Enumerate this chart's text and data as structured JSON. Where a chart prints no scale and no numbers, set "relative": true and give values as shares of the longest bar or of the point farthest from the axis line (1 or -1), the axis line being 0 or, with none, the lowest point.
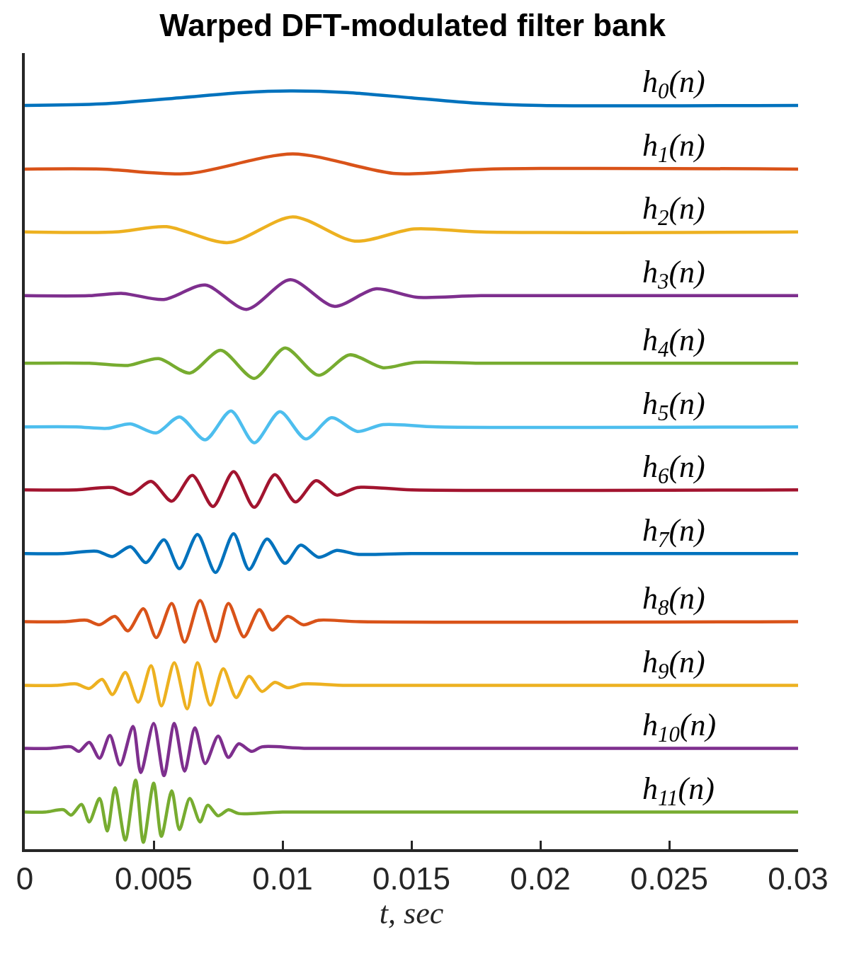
{
  "chart_data": {
    "type": "line",
    "title": "Warped DFT-modulated filter bank",
    "xlabel": "t, sec",
    "relative": true,
    "xlim": [
      0,
      0.03
    ],
    "xticks": [
      0,
      0.005,
      0.01,
      0.015,
      0.02,
      0.025,
      0.03
    ],
    "grid": false,
    "legend": false,
    "marker": "none",
    "line_style": "solid",
    "series": [
      {
        "name": "h$_{0}$(n)",
        "color": "#0072bd",
        "x": [
          0,
          0.003,
          0.006,
          0.0085,
          0.0103,
          0.0125,
          0.015,
          0.0175,
          0.02,
          0.03
        ],
        "values": [
          0.981,
          0.983,
          0.991,
          0.998,
          1.0,
          0.998,
          0.991,
          0.984,
          0.981,
          0.981
        ]
      },
      {
        "name": "h$_{1}$(n)",
        "color": "#d95319",
        "x": [
          0,
          0.003,
          0.0063,
          0.0104,
          0.0144,
          0.018,
          0.03
        ],
        "values": [
          0.897,
          0.897,
          0.891,
          0.917,
          0.891,
          0.897,
          0.897
        ]
      },
      {
        "name": "h$_{2}$(n)",
        "color": "#edb120",
        "x": [
          0,
          0.0035,
          0.0055,
          0.0079,
          0.0104,
          0.0128,
          0.0151,
          0.0177,
          0.03
        ],
        "values": [
          0.814,
          0.814,
          0.821,
          0.8,
          0.834,
          0.802,
          0.818,
          0.814,
          0.814
        ]
      },
      {
        "name": "h$_{3}$(n)",
        "color": "#7e2f8e",
        "x": [
          0,
          0.0025,
          0.0038,
          0.0054,
          0.007,
          0.0086,
          0.0103,
          0.012,
          0.0136,
          0.0152,
          0.0177,
          0.03
        ],
        "values": [
          0.73,
          0.73,
          0.733,
          0.725,
          0.744,
          0.712,
          0.751,
          0.716,
          0.739,
          0.728,
          0.73,
          0.73
        ]
      },
      {
        "name": "h$_{4}$(n)",
        "color": "#77ac30",
        "x": [
          0,
          0.0025,
          0.004,
          0.0052,
          0.0064,
          0.0076,
          0.0089,
          0.0101,
          0.0114,
          0.0126,
          0.0139,
          0.0151,
          0.0175,
          0.03
        ],
        "values": [
          0.641,
          0.641,
          0.638,
          0.647,
          0.628,
          0.658,
          0.621,
          0.661,
          0.625,
          0.652,
          0.635,
          0.642,
          0.641,
          0.641
        ]
      },
      {
        "name": "h$_{5}$(n)",
        "color": "#4dbeee",
        "x": [
          0,
          0.002,
          0.0032,
          0.0041,
          0.0051,
          0.006,
          0.007,
          0.008,
          0.0089,
          0.0099,
          0.0109,
          0.0119,
          0.0129,
          0.0139,
          0.016,
          0.03
        ],
        "values": [
          0.557,
          0.557,
          0.555,
          0.561,
          0.549,
          0.57,
          0.54,
          0.578,
          0.536,
          0.577,
          0.541,
          0.569,
          0.551,
          0.56,
          0.557,
          0.557
        ]
      },
      {
        "name": "h$_{6}$(n)",
        "color": "#a2142f",
        "x": [
          0,
          0.002,
          0.0034,
          0.0041,
          0.0049,
          0.0057,
          0.0065,
          0.0073,
          0.0081,
          0.0089,
          0.0097,
          0.0105,
          0.0113,
          0.0121,
          0.0129,
          0.015,
          0.03
        ],
        "values": [
          0.474,
          0.474,
          0.477,
          0.468,
          0.485,
          0.459,
          0.493,
          0.452,
          0.498,
          0.451,
          0.494,
          0.458,
          0.486,
          0.467,
          0.477,
          0.474,
          0.474
        ]
      },
      {
        "name": "h$_{7}$(n)",
        "color": "#0072bd",
        "x": [
          0,
          0.0015,
          0.0028,
          0.0034,
          0.0041,
          0.0047,
          0.0054,
          0.006,
          0.0067,
          0.0074,
          0.0081,
          0.0087,
          0.0094,
          0.0101,
          0.0107,
          0.0114,
          0.0121,
          0.0129,
          0.015,
          0.03
        ],
        "values": [
          0.39,
          0.39,
          0.393,
          0.386,
          0.399,
          0.378,
          0.408,
          0.37,
          0.415,
          0.365,
          0.416,
          0.369,
          0.409,
          0.377,
          0.401,
          0.385,
          0.394,
          0.389,
          0.39,
          0.39
        ]
      },
      {
        "name": "h$_{8}$(n)",
        "color": "#d95319",
        "x": [
          0,
          0.0015,
          0.0024,
          0.0029,
          0.0035,
          0.004,
          0.0046,
          0.0051,
          0.0057,
          0.0062,
          0.0068,
          0.0074,
          0.0079,
          0.0085,
          0.0091,
          0.0096,
          0.0102,
          0.0108,
          0.0114,
          0.013,
          0.03
        ],
        "values": [
          0.3,
          0.3,
          0.302,
          0.296,
          0.307,
          0.288,
          0.317,
          0.279,
          0.324,
          0.273,
          0.328,
          0.274,
          0.324,
          0.28,
          0.316,
          0.289,
          0.307,
          0.296,
          0.302,
          0.3,
          0.3
        ]
      },
      {
        "name": "h$_{9}$(n)",
        "color": "#edb120",
        "x": [
          0,
          0.0012,
          0.002,
          0.0025,
          0.003,
          0.0034,
          0.0039,
          0.0044,
          0.0049,
          0.0053,
          0.0058,
          0.0063,
          0.0067,
          0.0072,
          0.0077,
          0.0082,
          0.0087,
          0.0092,
          0.0097,
          0.0102,
          0.0108,
          0.0125,
          0.03
        ],
        "values": [
          0.216,
          0.216,
          0.218,
          0.212,
          0.224,
          0.204,
          0.233,
          0.194,
          0.242,
          0.189,
          0.246,
          0.185,
          0.246,
          0.19,
          0.238,
          0.2,
          0.228,
          0.208,
          0.22,
          0.213,
          0.218,
          0.216,
          0.216
        ]
      },
      {
        "name": "h$_{10}$(n)",
        "color": "#7e2f8e",
        "x": [
          0,
          0.001,
          0.0018,
          0.0021,
          0.0025,
          0.0029,
          0.0033,
          0.0037,
          0.0042,
          0.0045,
          0.005,
          0.0054,
          0.0058,
          0.0062,
          0.0066,
          0.007,
          0.0075,
          0.0079,
          0.0083,
          0.0088,
          0.0092,
          0.011,
          0.03
        ],
        "values": [
          0.133,
          0.133,
          0.135,
          0.129,
          0.141,
          0.12,
          0.15,
          0.111,
          0.162,
          0.101,
          0.166,
          0.097,
          0.166,
          0.103,
          0.16,
          0.113,
          0.149,
          0.121,
          0.139,
          0.129,
          0.135,
          0.133,
          0.133
        ]
      },
      {
        "name": "h$_{11}$(n)",
        "color": "#77ac30",
        "x": [
          0,
          0.0008,
          0.0015,
          0.0018,
          0.0022,
          0.0025,
          0.0029,
          0.0032,
          0.0035,
          0.0039,
          0.0043,
          0.0046,
          0.005,
          0.0053,
          0.0057,
          0.006,
          0.0064,
          0.0068,
          0.0071,
          0.0075,
          0.0079,
          0.0083,
          0.01,
          0.03
        ],
        "values": [
          0.049,
          0.049,
          0.052,
          0.045,
          0.059,
          0.036,
          0.067,
          0.024,
          0.081,
          0.012,
          0.091,
          0.009,
          0.087,
          0.017,
          0.077,
          0.026,
          0.067,
          0.036,
          0.058,
          0.044,
          0.052,
          0.047,
          0.049,
          0.049
        ]
      }
    ]
  }
}
